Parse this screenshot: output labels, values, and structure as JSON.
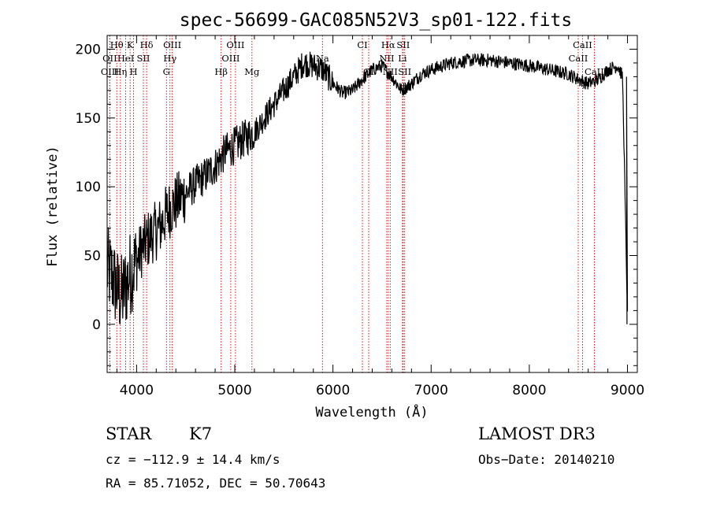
{
  "chart_data": {
    "type": "line",
    "title": "spec-56699-GAC085N52V3_sp01-122.fits",
    "xlabel": "Wavelength (Å)",
    "ylabel": "Flux (relative)",
    "xlim": [
      3700,
      9100
    ],
    "ylim": [
      -35,
      210
    ],
    "xticks": [
      4000,
      5000,
      6000,
      7000,
      8000,
      9000
    ],
    "xtick_labels": [
      "4000",
      "5000",
      "6000",
      "7000",
      "8000",
      "9000"
    ],
    "yticks": [
      0,
      50,
      100,
      150,
      200
    ],
    "ytick_labels": [
      "0",
      "50",
      "100",
      "150",
      "200"
    ],
    "grid": false,
    "series": [
      {
        "name": "flux",
        "x": [
          3700,
          3750,
          3800,
          3850,
          3900,
          3950,
          4000,
          4050,
          4100,
          4150,
          4200,
          4250,
          4300,
          4350,
          4400,
          4450,
          4500,
          4600,
          4700,
          4800,
          4900,
          5000,
          5100,
          5200,
          5300,
          5400,
          5500,
          5600,
          5700,
          5800,
          5900,
          6000,
          6100,
          6200,
          6300,
          6400,
          6500,
          6600,
          6700,
          6800,
          6900,
          7000,
          7200,
          7400,
          7600,
          7800,
          8000,
          8200,
          8400,
          8500,
          8600,
          8700,
          8800,
          8900,
          8950,
          9000
        ],
        "y": [
          40,
          35,
          25,
          20,
          30,
          40,
          45,
          55,
          60,
          65,
          68,
          72,
          80,
          85,
          88,
          92,
          95,
          102,
          108,
          115,
          125,
          130,
          135,
          140,
          150,
          160,
          170,
          180,
          190,
          188,
          185,
          175,
          168,
          170,
          178,
          185,
          188,
          180,
          170,
          175,
          182,
          185,
          190,
          192,
          192,
          190,
          188,
          185,
          182,
          178,
          175,
          178,
          185,
          188,
          180,
          5
        ]
      }
    ],
    "spectral_lines": [
      {
        "label": "Hθ",
        "row": 0,
        "x": 3798
      },
      {
        "label": "K",
        "row": 0,
        "x": 3934
      },
      {
        "label": "Hδ",
        "row": 0,
        "x": 4102
      },
      {
        "label": "OIII",
        "row": 0,
        "x": 4363
      },
      {
        "label": "OIII",
        "row": 0,
        "x": 5007
      },
      {
        "label": "CI",
        "row": 0,
        "x": 6300
      },
      {
        "label": "Hα",
        "row": 0,
        "x": 6563
      },
      {
        "label": "SII",
        "row": 0,
        "x": 6716
      },
      {
        "label": "CaII",
        "row": 0,
        "x": 8542
      },
      {
        "label": "OII",
        "row": 1,
        "x": 3727
      },
      {
        "label": "HeI",
        "row": 1,
        "x": 3889
      },
      {
        "label": "SII",
        "row": 1,
        "x": 4069
      },
      {
        "label": "Hγ",
        "row": 1,
        "x": 4340
      },
      {
        "label": "OIII",
        "row": 1,
        "x": 4959
      },
      {
        "label": "Na",
        "row": 1,
        "x": 5893
      },
      {
        "label": "NII",
        "row": 1,
        "x": 6548
      },
      {
        "label": "Li",
        "row": 1,
        "x": 6708
      },
      {
        "label": "CaII",
        "row": 1,
        "x": 8498
      },
      {
        "label": "OIII",
        "row": 2,
        "x": 3727
      },
      {
        "label": "Hη",
        "row": 2,
        "x": 3835
      },
      {
        "label": "H",
        "row": 2,
        "x": 3969
      },
      {
        "label": "G",
        "row": 2,
        "x": 4304
      },
      {
        "label": "Hβ",
        "row": 2,
        "x": 4861
      },
      {
        "label": "Mg",
        "row": 2,
        "x": 5175
      },
      {
        "label": "OI",
        "row": 2,
        "x": 6364
      },
      {
        "label": "NII",
        "row": 2,
        "x": 6583
      },
      {
        "label": "SII",
        "row": 2,
        "x": 6731
      },
      {
        "label": "CaII",
        "row": 2,
        "x": 8662
      }
    ]
  },
  "info": {
    "class_label": "STAR",
    "subclass": "K7",
    "survey": "LAMOST DR3",
    "cz": "cz = −112.9 ± 14.4 km/s",
    "obs_date": "Obs−Date: 20140210",
    "coords": "RA =  85.71052, DEC =  50.70643"
  }
}
